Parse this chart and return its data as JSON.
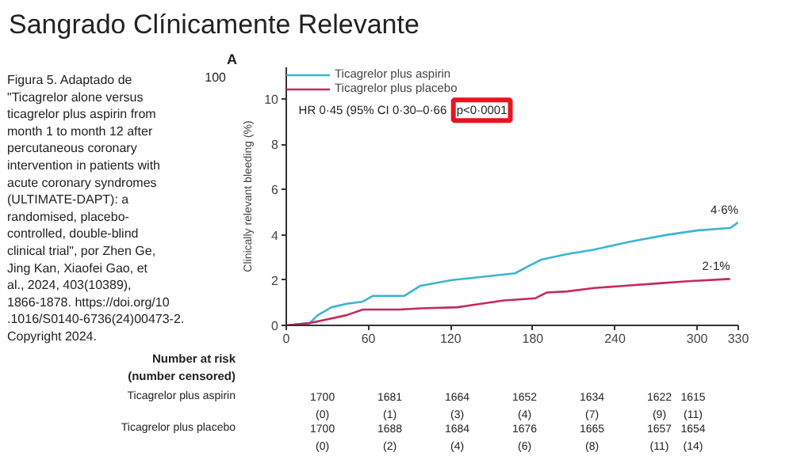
{
  "chart_data": {
    "type": "line",
    "title": "Sangrado Clínicamente Relevante",
    "ylabel": "Clinically relevant bleeding (%)",
    "xlim": [
      0,
      330
    ],
    "xticks": [
      0,
      60,
      120,
      180,
      240,
      300,
      330
    ],
    "ylim": [
      0,
      11.4
    ],
    "yticks": [
      0,
      2,
      4,
      6,
      8,
      10
    ],
    "grid": false,
    "legend": "top left",
    "marker": "none",
    "line_style": "solid",
    "series": [
      {
        "name": "Ticagrelor plus aspirin",
        "color": "#3cb4d2",
        "x": [
          0,
          17,
          23,
          33,
          44,
          56,
          63,
          86,
          98,
          121,
          136,
          167,
          178,
          186,
          205,
          225,
          236,
          251,
          278,
          301,
          324,
          330
        ],
        "values": [
          0,
          0.1,
          0.45,
          0.8,
          0.95,
          1.05,
          1.3,
          1.3,
          1.75,
          2.0,
          2.1,
          2.3,
          2.65,
          2.9,
          3.15,
          3.35,
          3.5,
          3.7,
          4.0,
          4.2,
          4.3,
          4.55
        ]
      },
      {
        "name": "Ticagrelor plus placebo",
        "color": "#c8285a",
        "x": [
          0,
          17,
          29,
          44,
          56,
          83,
          98,
          125,
          136,
          159,
          182,
          190,
          205,
          225,
          247,
          270,
          293,
          324
        ],
        "values": [
          0,
          0.1,
          0.25,
          0.45,
          0.7,
          0.7,
          0.75,
          0.8,
          0.9,
          1.1,
          1.2,
          1.45,
          1.5,
          1.65,
          1.75,
          1.85,
          1.95,
          2.05
        ]
      }
    ],
    "annotations": [
      "Figura 5. Adaptado de \"Ticagrelor alone versus ticagrelor plus aspirin from month 1 to month 12 after percutaneous coronary intervention in patients with acute coronary syndromes (ULTIMATE-DAPT): a randomised, placebo-controlled, double-blind clinical trial\", por Zhen Ge, Jing Kan, Xiaofei Gao, et al., 2024, 403(10389), 1866-1878. https://doi.org/10.1016/S0140-6736(24)00473-2. Copyright 2024.",
      "A",
      "100",
      "HR 0·45 (95% CI 0·30–0·66",
      "p<0·0001",
      {
        "text": "4·6%",
        "x": 330,
        "y": 4.55
      },
      {
        "text": "2·1%",
        "x": 324,
        "y": 2.05
      },
      "Number at risk",
      "(number censored)",
      "Ticagrelor plus aspirin",
      "1700 1681 1664 1652 1634 1622 1615",
      "(0) (1) (3) (4) (7) (9) (11)",
      "Ticagrelor plus placebo",
      "1700 1688 1684 1676 1665 1657 1654",
      "(0) (2) (4) (6) (8) (11) (14)"
    ]
  }
}
